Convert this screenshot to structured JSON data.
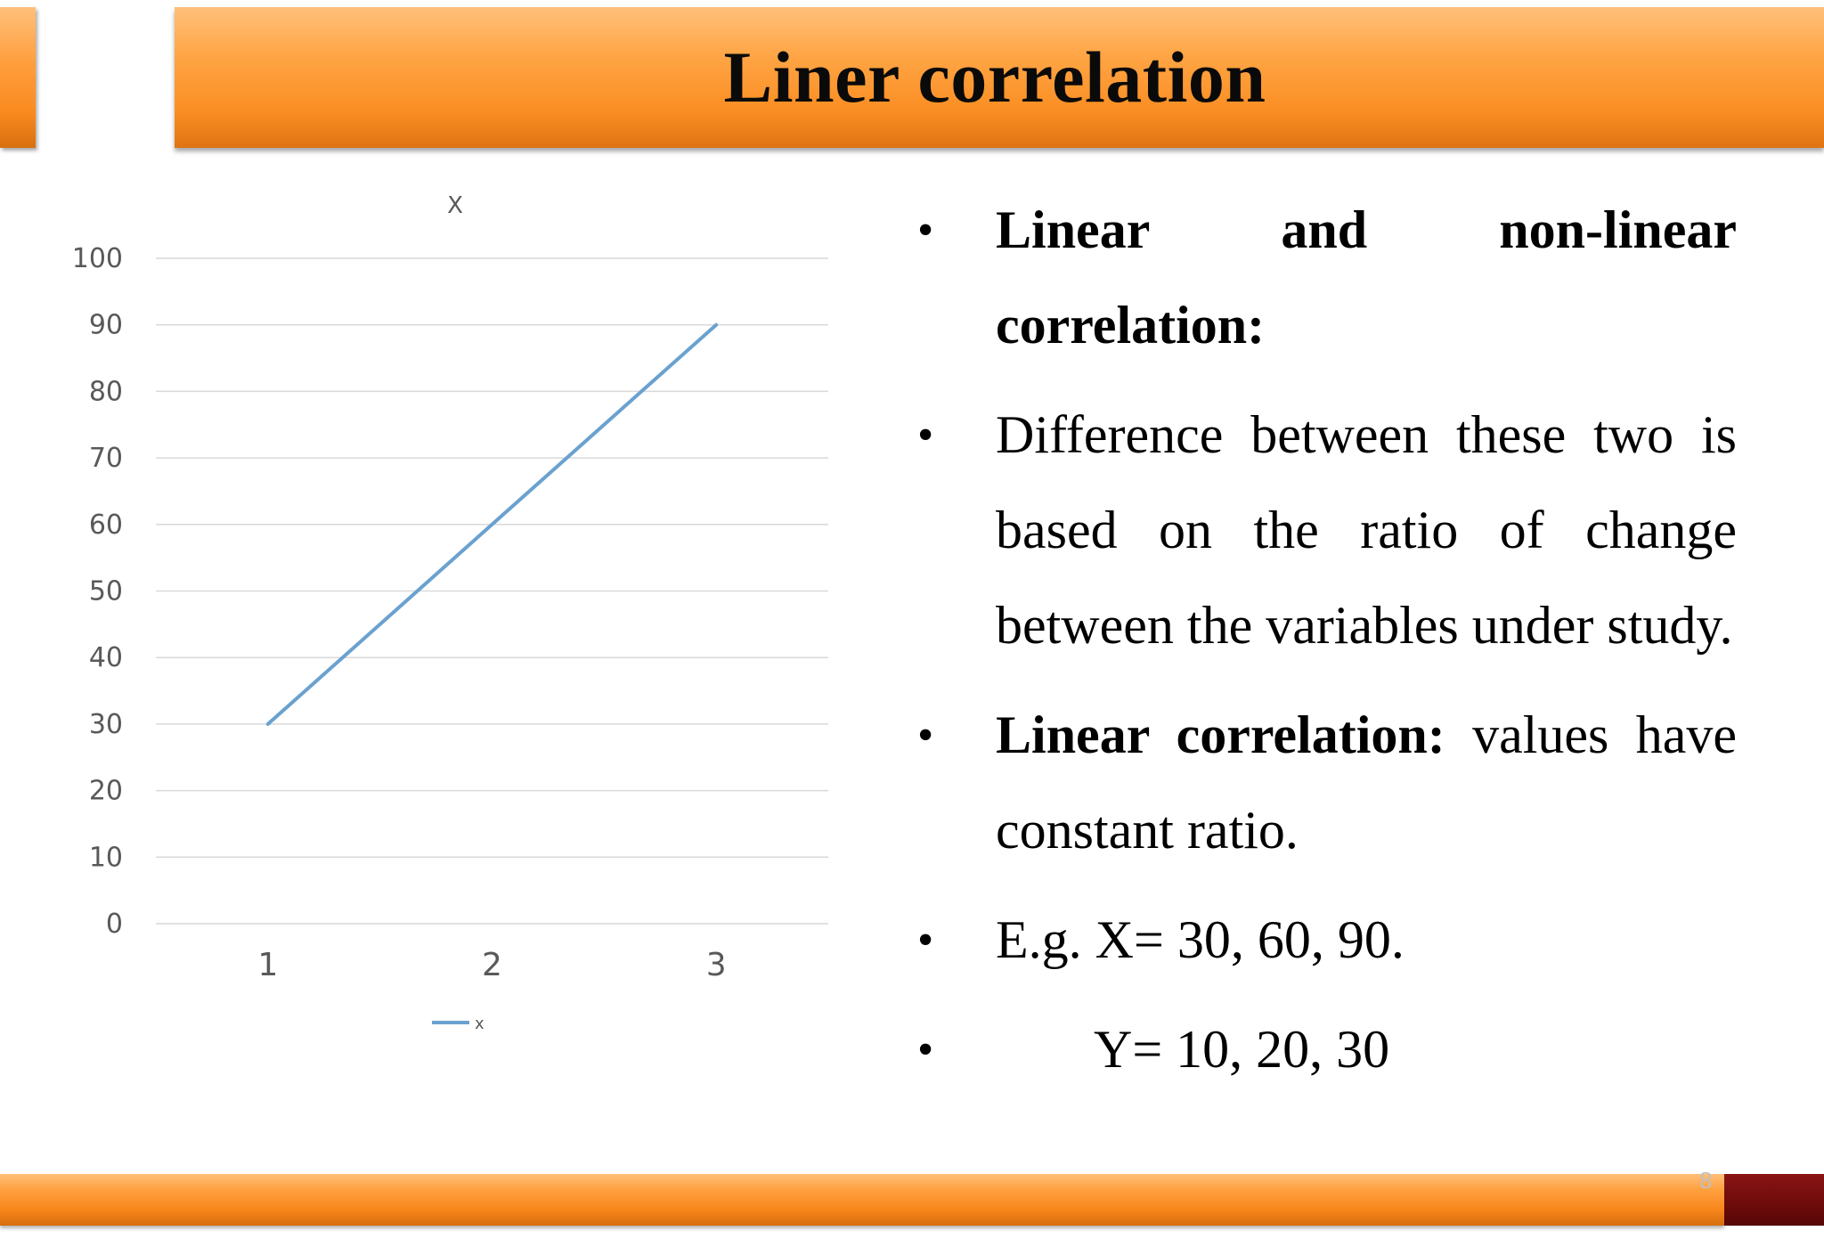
{
  "slide": {
    "title": "Liner correlation",
    "page_number": "8",
    "colors": {
      "title_bar": "#f99b35",
      "bottom_bar": "#f58a1f",
      "corner_block": "#6e0b0b",
      "line_series": "#6aa1cf"
    }
  },
  "bullets": [
    {
      "parts": [
        {
          "text": "Linear and non-linear correlation:",
          "bold": true
        }
      ]
    },
    {
      "parts": [
        {
          "text": "Difference between these two is based on the ratio of change between the variables under study.",
          "bold": false
        }
      ]
    },
    {
      "parts": [
        {
          "text": "Linear correlation:",
          "bold": true
        },
        {
          "text": " values have constant ratio.",
          "bold": false
        }
      ]
    },
    {
      "parts": [
        {
          "text": "E.g. X= 30, 60, 90.",
          "bold": false
        }
      ]
    },
    {
      "parts": [
        {
          "text": "Y= 10, 20, 30",
          "bold": false
        }
      ]
    }
  ],
  "chart_data": {
    "type": "line",
    "title": "X",
    "categories": [
      "1",
      "2",
      "3"
    ],
    "series": [
      {
        "name": "x",
        "values": [
          30,
          60,
          90
        ],
        "color": "#6aa1cf"
      }
    ],
    "ylim": [
      0,
      100
    ],
    "yticks": [
      "0",
      "10",
      "20",
      "30",
      "40",
      "50",
      "60",
      "70",
      "80",
      "90",
      "100"
    ],
    "grid": true,
    "legend": "bottom"
  }
}
